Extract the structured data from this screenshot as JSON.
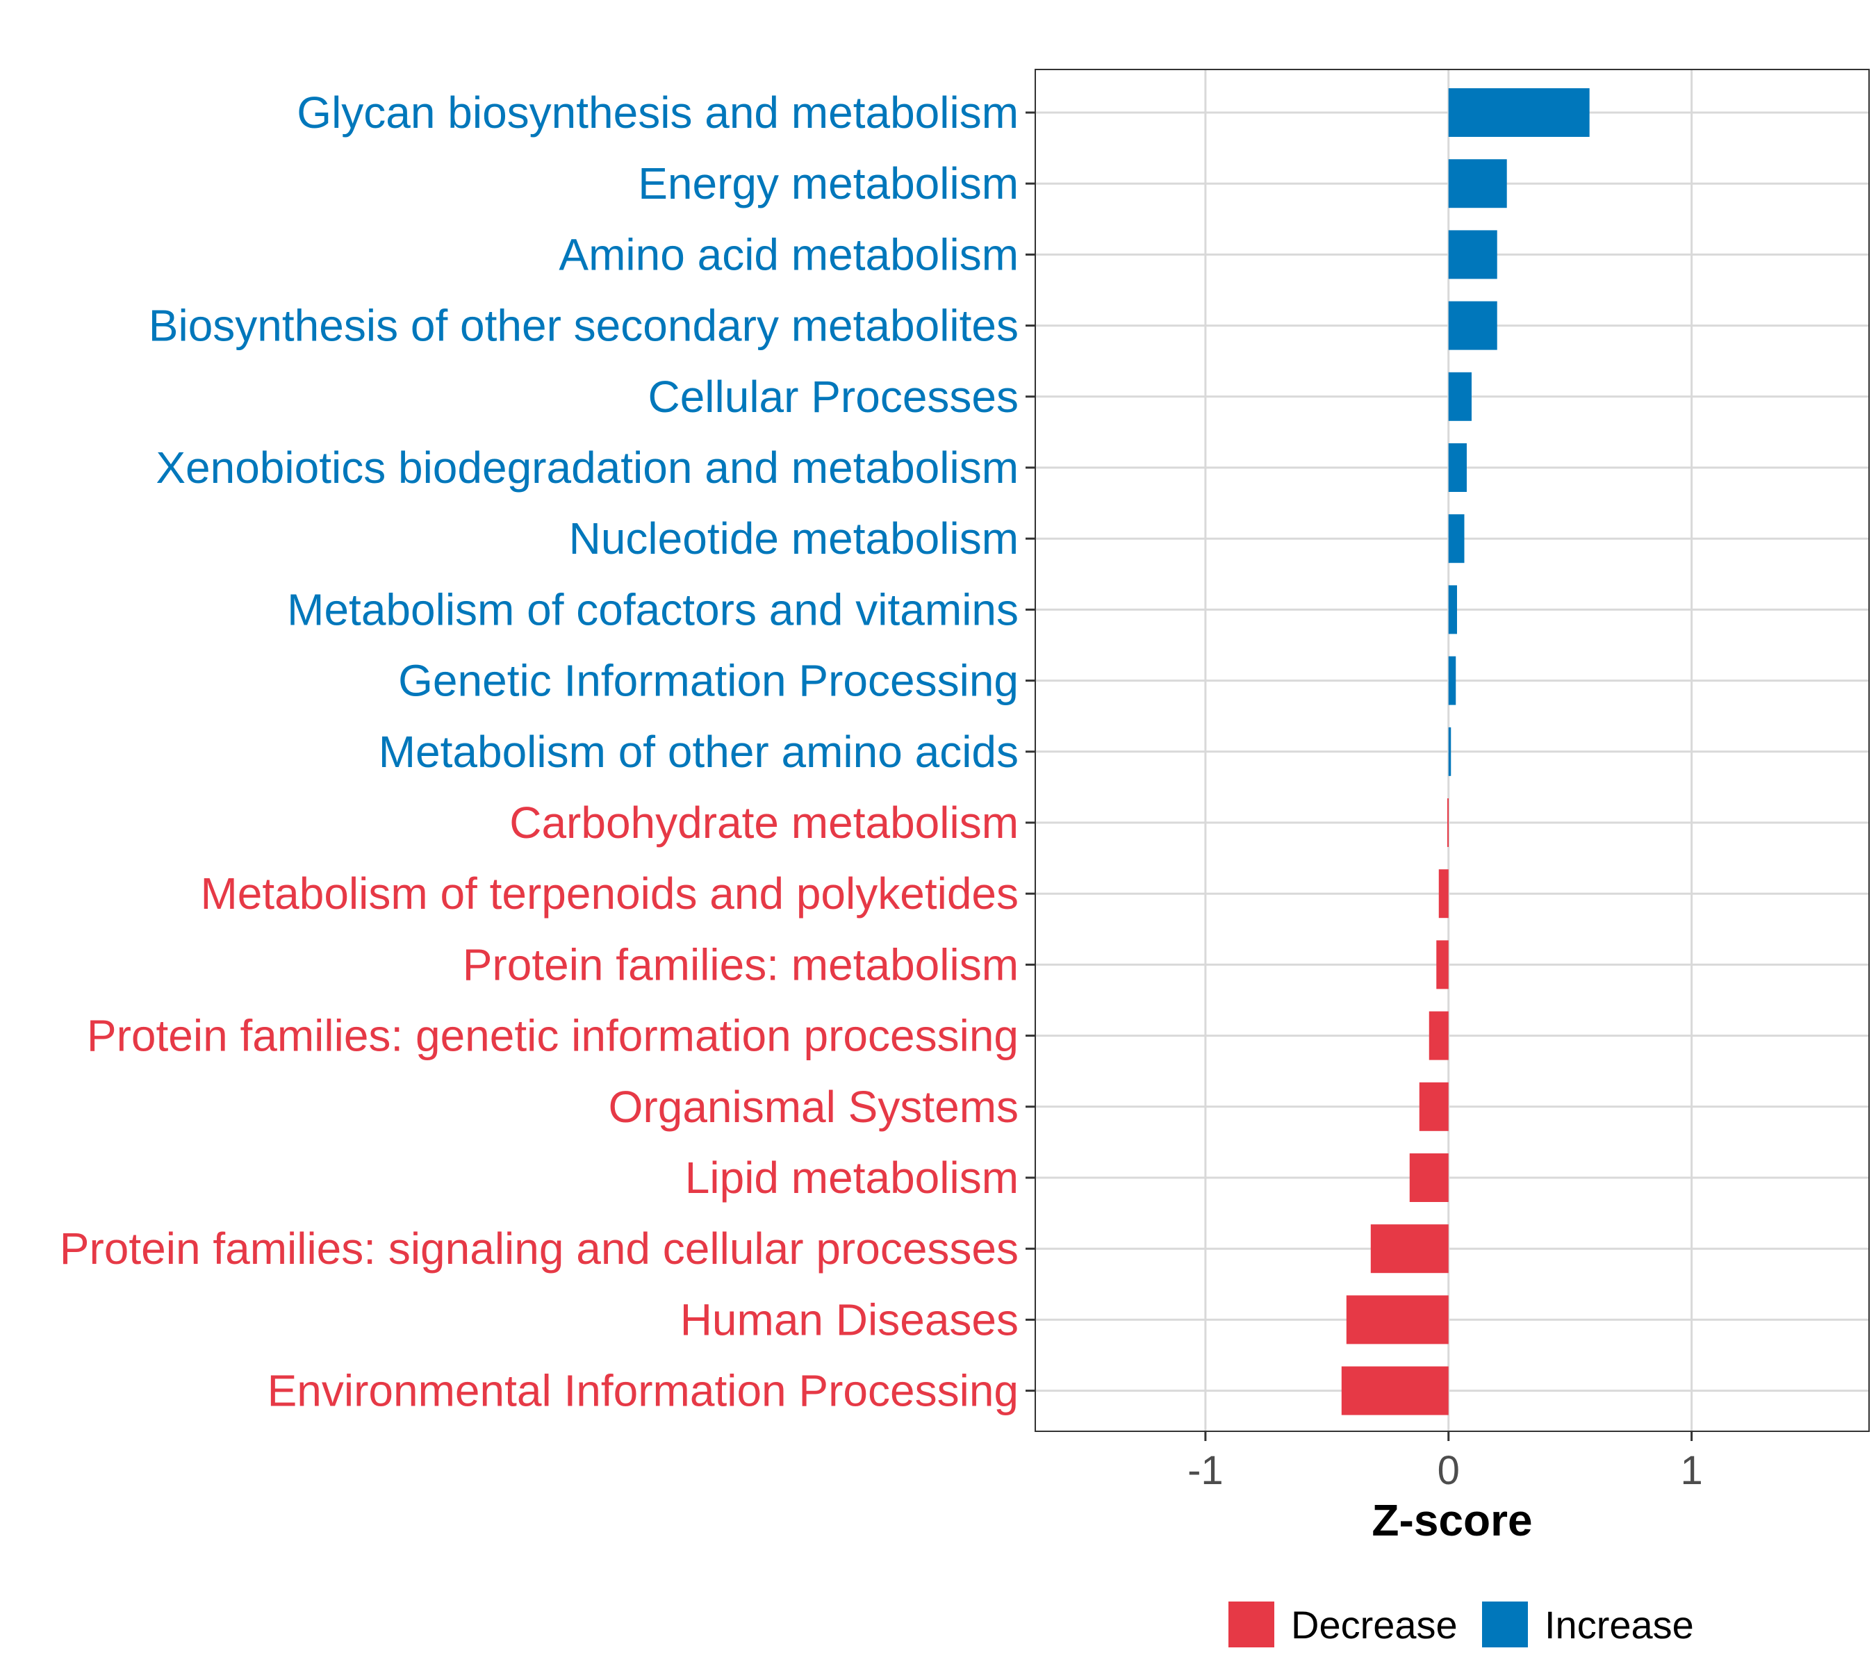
{
  "colors": {
    "increase": "#0077bb",
    "decrease": "#e63946",
    "grid": "#d9d9d9",
    "axis": "#333333",
    "tick_label": "#4d4d4d"
  },
  "chart_data": {
    "type": "bar",
    "orientation": "horizontal",
    "title": "",
    "xlabel": "Z-score",
    "ylabel": "",
    "xlim": [
      -1.7,
      1.73
    ],
    "xticks": [
      -1,
      0,
      1
    ],
    "xtick_labels": [
      "-1",
      "0",
      "1"
    ],
    "grid": true,
    "legend": {
      "position": "bottom",
      "entries": [
        {
          "label": "Decrease",
          "color_key": "decrease"
        },
        {
          "label": "Increase",
          "color_key": "increase"
        }
      ]
    },
    "categories": [
      "Glycan biosynthesis and metabolism",
      "Energy metabolism",
      "Amino acid metabolism",
      "Biosynthesis of other secondary metabolites",
      "Cellular Processes",
      "Xenobiotics biodegradation and metabolism",
      "Nucleotide metabolism",
      "Metabolism of cofactors and vitamins",
      "Genetic Information Processing",
      "Metabolism of other amino acids",
      "Carbohydrate metabolism",
      "Metabolism of terpenoids and polyketides",
      "Protein families: metabolism",
      "Protein families: genetic information processing",
      "Organismal Systems",
      "Lipid metabolism",
      "Protein families: signaling and cellular processes",
      "Human Diseases",
      "Environmental Information Processing"
    ],
    "values": [
      0.58,
      0.24,
      0.2,
      0.2,
      0.095,
      0.075,
      0.065,
      0.035,
      0.03,
      0.01,
      -0.005,
      -0.04,
      -0.05,
      -0.08,
      -0.12,
      -0.16,
      -0.32,
      -0.42,
      -0.44
    ],
    "groups": [
      "Increase",
      "Increase",
      "Increase",
      "Increase",
      "Increase",
      "Increase",
      "Increase",
      "Increase",
      "Increase",
      "Increase",
      "Decrease",
      "Decrease",
      "Decrease",
      "Decrease",
      "Decrease",
      "Decrease",
      "Decrease",
      "Decrease",
      "Decrease"
    ]
  }
}
